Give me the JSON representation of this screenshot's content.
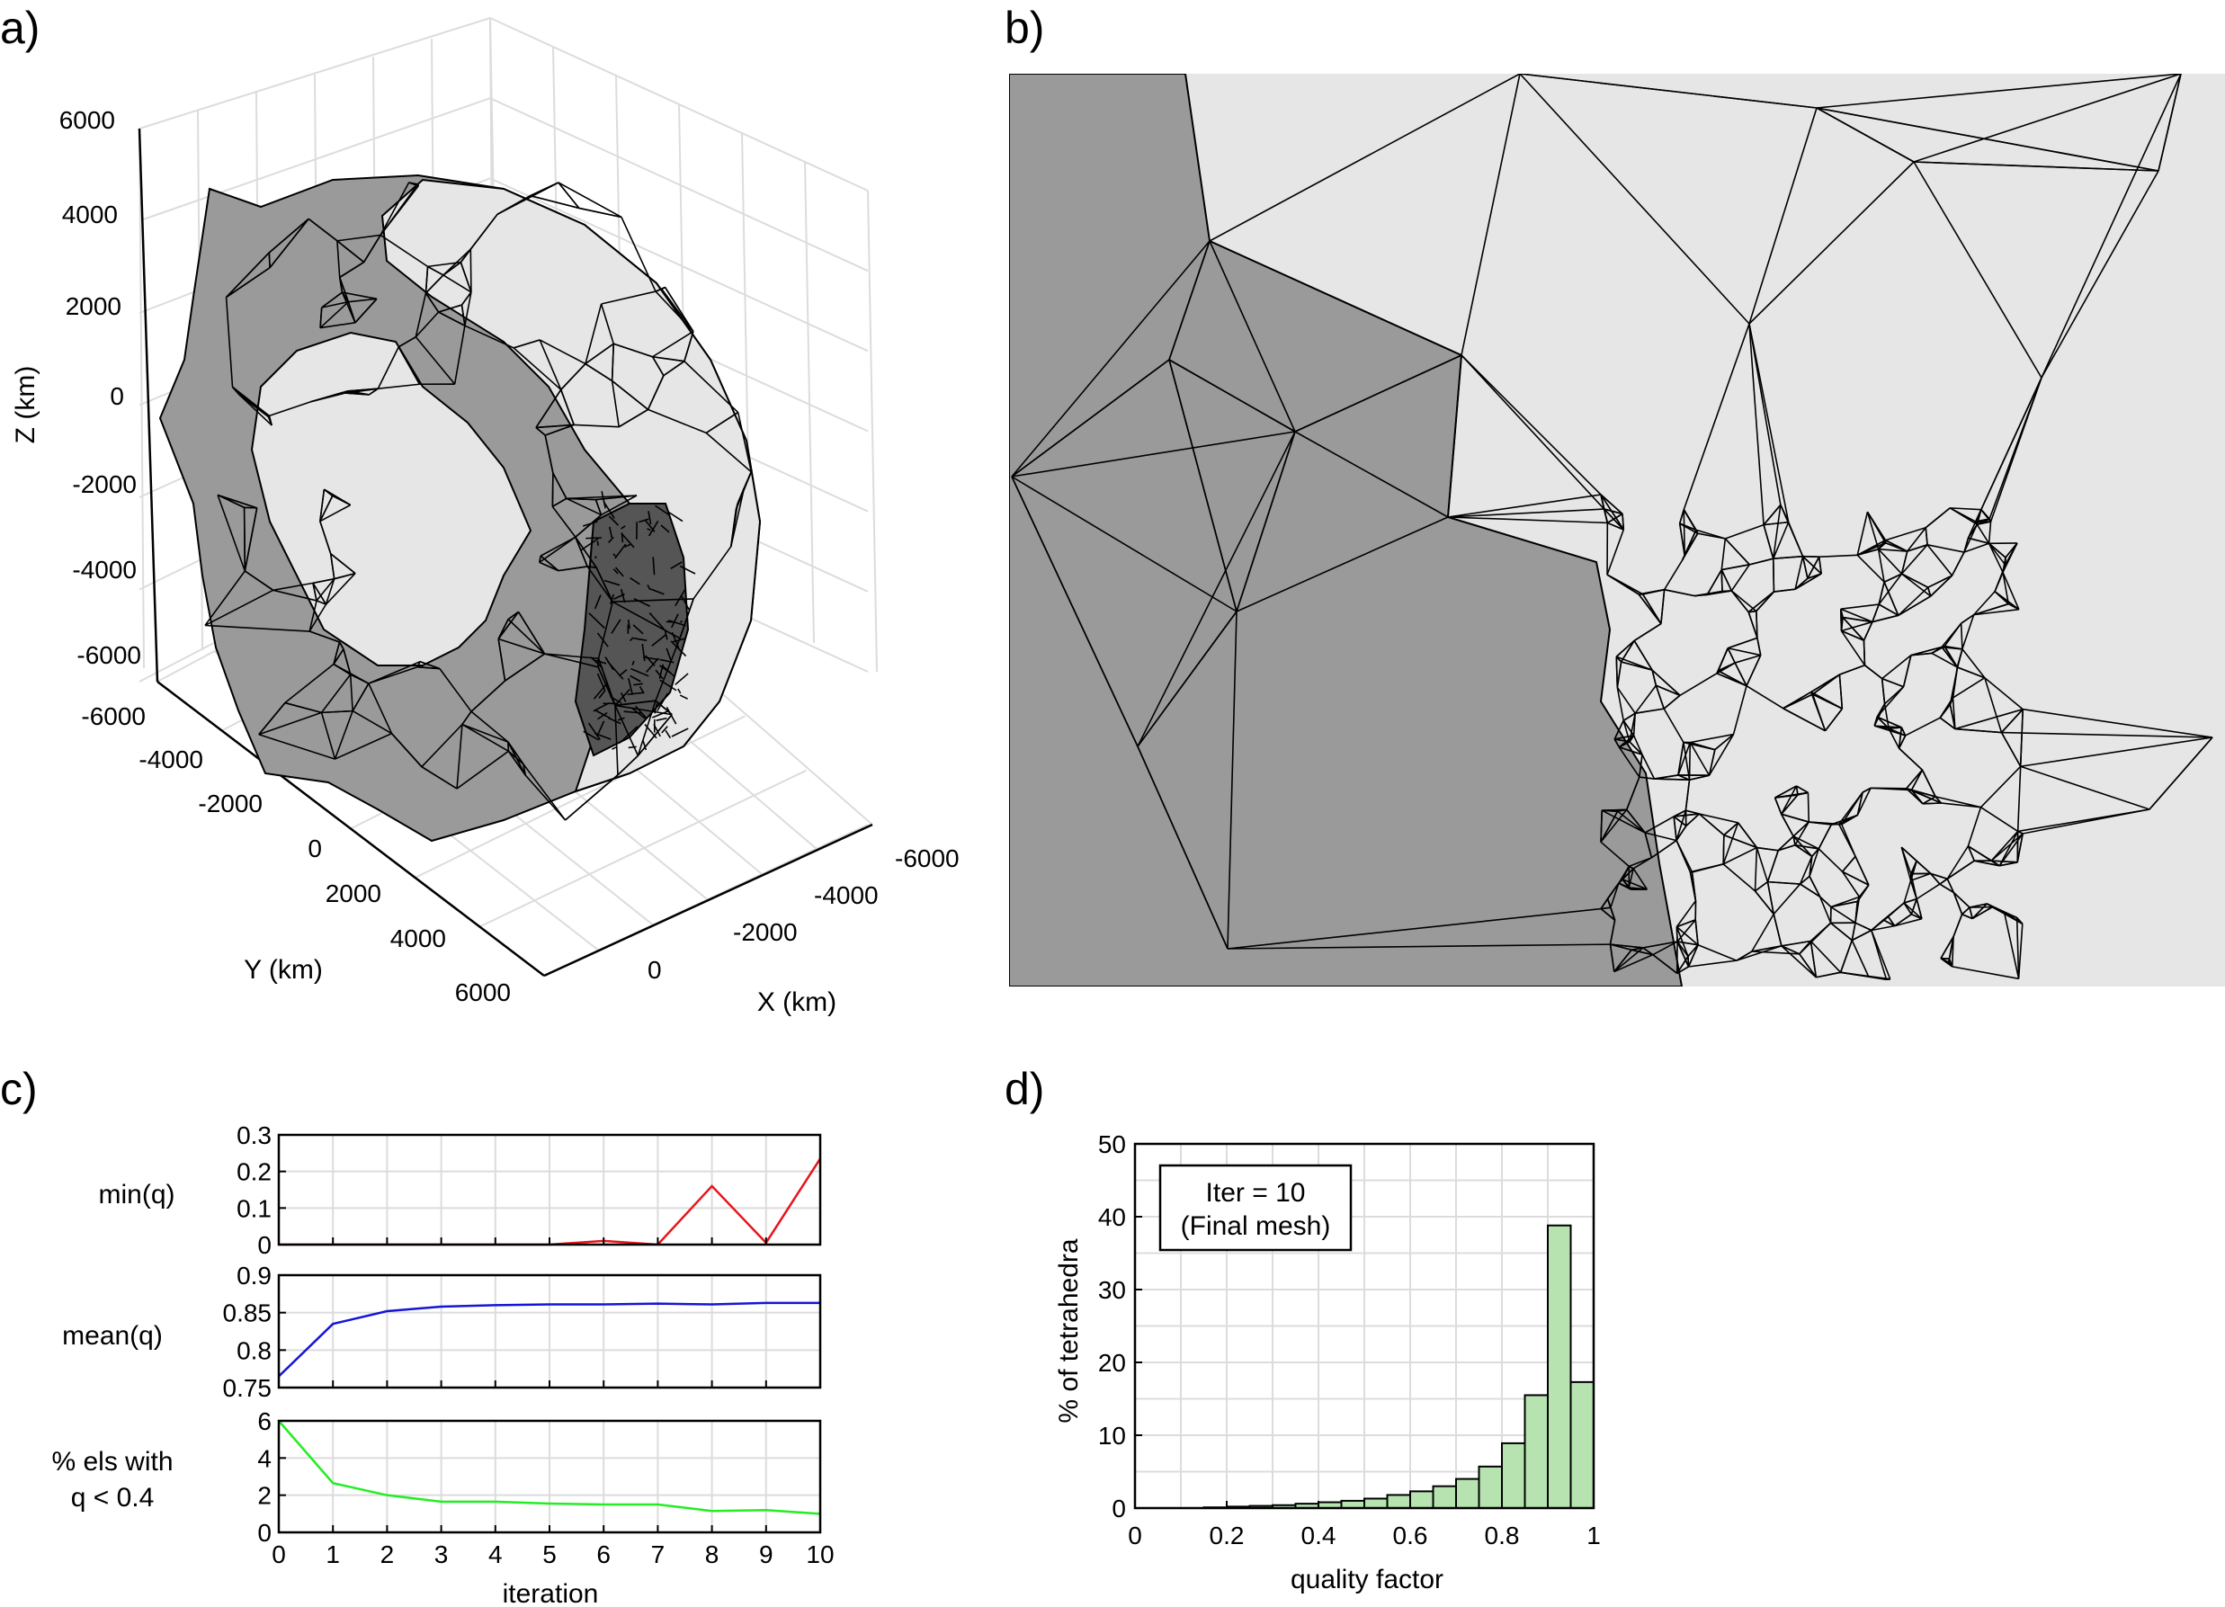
{
  "panels": {
    "a": "a)",
    "b": "b)",
    "c": "c)",
    "d": "d)"
  },
  "panel_a": {
    "z_ticks": [
      "6000",
      "4000",
      "2000",
      "0",
      "-2000",
      "-4000",
      "-6000"
    ],
    "y_ticks": [
      "-6000",
      "-4000",
      "-2000",
      "0",
      "2000",
      "4000",
      "6000"
    ],
    "x_ticks": [
      "-6000",
      "-4000",
      "-2000",
      "0"
    ],
    "zlabel": "Z (km)",
    "ylabel": "Y (km)",
    "xlabel": "X (km)"
  },
  "colors": {
    "dark_gray": "#9a9a9a",
    "light_gray": "#e6e6e6",
    "min_q": "#e8141b",
    "mean_q": "#1515d6",
    "pct_low": "#22ee22",
    "bar_fill": "#b6e3b0"
  },
  "chart_data": [
    {
      "type": "line",
      "panel": "c-1",
      "ylabel": "min(q)",
      "x": [
        0,
        1,
        2,
        3,
        4,
        5,
        6,
        7,
        8,
        9,
        10
      ],
      "series": [
        {
          "values": [
            0.0,
            0.0,
            0.0,
            0.0,
            0.0,
            0.0,
            0.01,
            0.0,
            0.16,
            0.005,
            0.235
          ]
        }
      ],
      "ylim": [
        0,
        0.3
      ],
      "yticks": [
        "0",
        "0.1",
        "0.2",
        "0.3"
      ],
      "grid": true
    },
    {
      "type": "line",
      "panel": "c-2",
      "ylabel": "mean(q)",
      "x": [
        0,
        1,
        2,
        3,
        4,
        5,
        6,
        7,
        8,
        9,
        10
      ],
      "series": [
        {
          "values": [
            0.765,
            0.835,
            0.852,
            0.858,
            0.86,
            0.861,
            0.861,
            0.862,
            0.861,
            0.863,
            0.863
          ]
        }
      ],
      "ylim": [
        0.75,
        0.9
      ],
      "yticks": [
        "0.75",
        "0.8",
        "0.85",
        "0.9"
      ],
      "grid": true
    },
    {
      "type": "line",
      "panel": "c-3",
      "ylabel_lines": [
        "% els with",
        "q < 0.4"
      ],
      "xlabel": "iteration",
      "x": [
        0,
        1,
        2,
        3,
        4,
        5,
        6,
        7,
        8,
        9,
        10
      ],
      "xticks": [
        "0",
        "1",
        "2",
        "3",
        "4",
        "5",
        "6",
        "7",
        "8",
        "9",
        "10"
      ],
      "series": [
        {
          "values": [
            6.0,
            2.65,
            2.0,
            1.65,
            1.65,
            1.55,
            1.5,
            1.5,
            1.15,
            1.2,
            1.0
          ]
        }
      ],
      "ylim": [
        0,
        6
      ],
      "yticks": [
        "0",
        "2",
        "4",
        "6"
      ],
      "grid": true
    },
    {
      "type": "bar",
      "panel": "d",
      "xlabel": "quality factor",
      "ylabel": "% of tetrahedra",
      "bin_edges": [
        0,
        0.05,
        0.1,
        0.15,
        0.2,
        0.25,
        0.3,
        0.35,
        0.4,
        0.45,
        0.5,
        0.55,
        0.6,
        0.65,
        0.7,
        0.75,
        0.8,
        0.85,
        0.9,
        0.95,
        1.0
      ],
      "values": [
        0,
        0,
        0,
        0.1,
        0.2,
        0.3,
        0.4,
        0.6,
        0.8,
        1.0,
        1.3,
        1.8,
        2.3,
        3.0,
        4.0,
        5.7,
        8.9,
        15.5,
        38.8,
        17.3
      ],
      "xlim": [
        0,
        1
      ],
      "ylim": [
        0,
        50
      ],
      "xticks": [
        "0",
        "0.2",
        "0.4",
        "0.6",
        "0.8",
        "1"
      ],
      "yticks": [
        "0",
        "10",
        "20",
        "30",
        "40",
        "50"
      ],
      "annotation": [
        "Iter = 10",
        "(Final mesh)"
      ],
      "grid": true
    }
  ]
}
